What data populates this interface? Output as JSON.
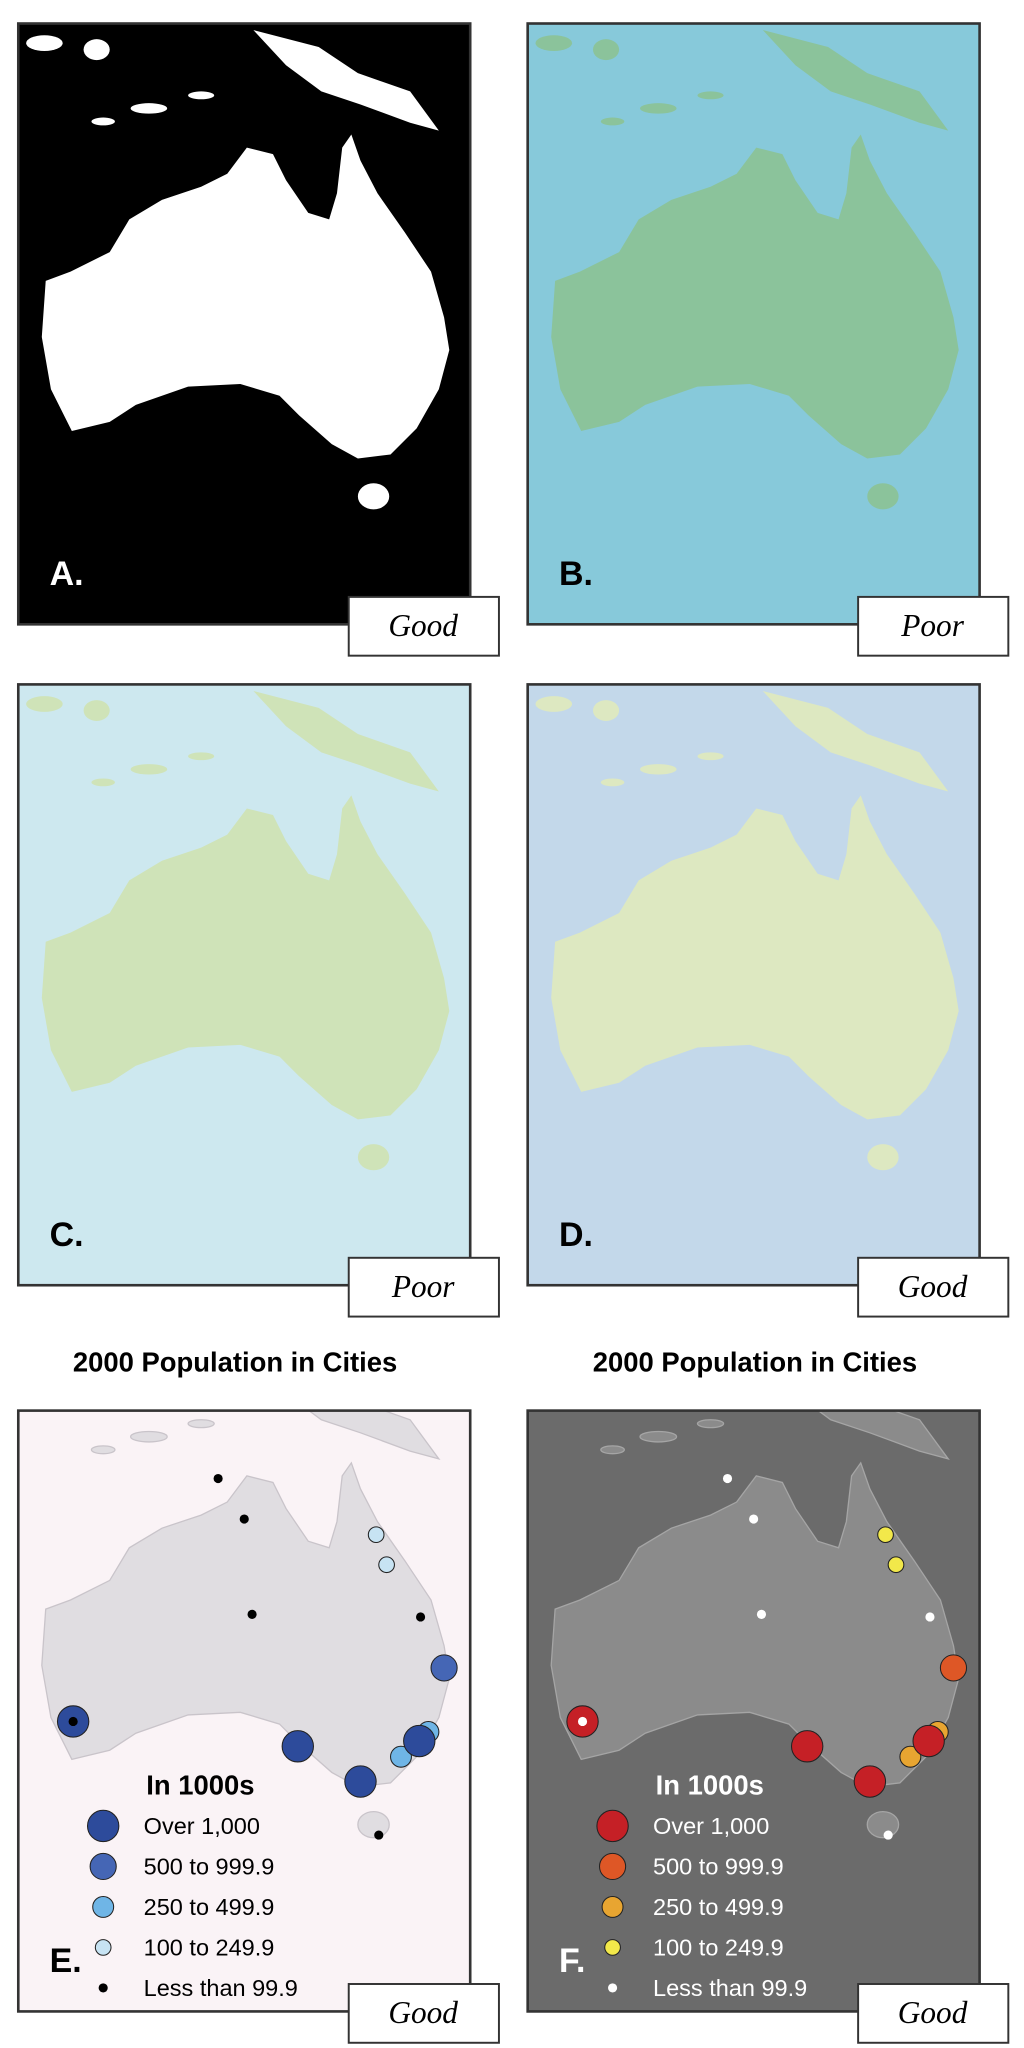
{
  "panels": [
    {
      "letter": "A.",
      "rating": "Good"
    },
    {
      "letter": "B.",
      "rating": "Poor"
    },
    {
      "letter": "C.",
      "rating": "Poor"
    },
    {
      "letter": "D.",
      "rating": "Good"
    },
    {
      "letter": "E.",
      "rating": "Good"
    },
    {
      "letter": "F.",
      "rating": "Good"
    }
  ],
  "population_maps": [
    {
      "title": "2000 Population in Cities",
      "legend_title": "In 1000s",
      "legend": [
        "Over 1,000",
        "500 to 999.9",
        "250 to 499.9",
        "100 to 249.9",
        "Less than 99.9"
      ]
    },
    {
      "title": "2000 Population in Cities",
      "legend_title": "In 1000s",
      "legend": [
        "Over 1,000",
        "500 to 999.9",
        "250 to 499.9",
        "100 to 249.9",
        "Less than 99.9"
      ]
    }
  ]
}
